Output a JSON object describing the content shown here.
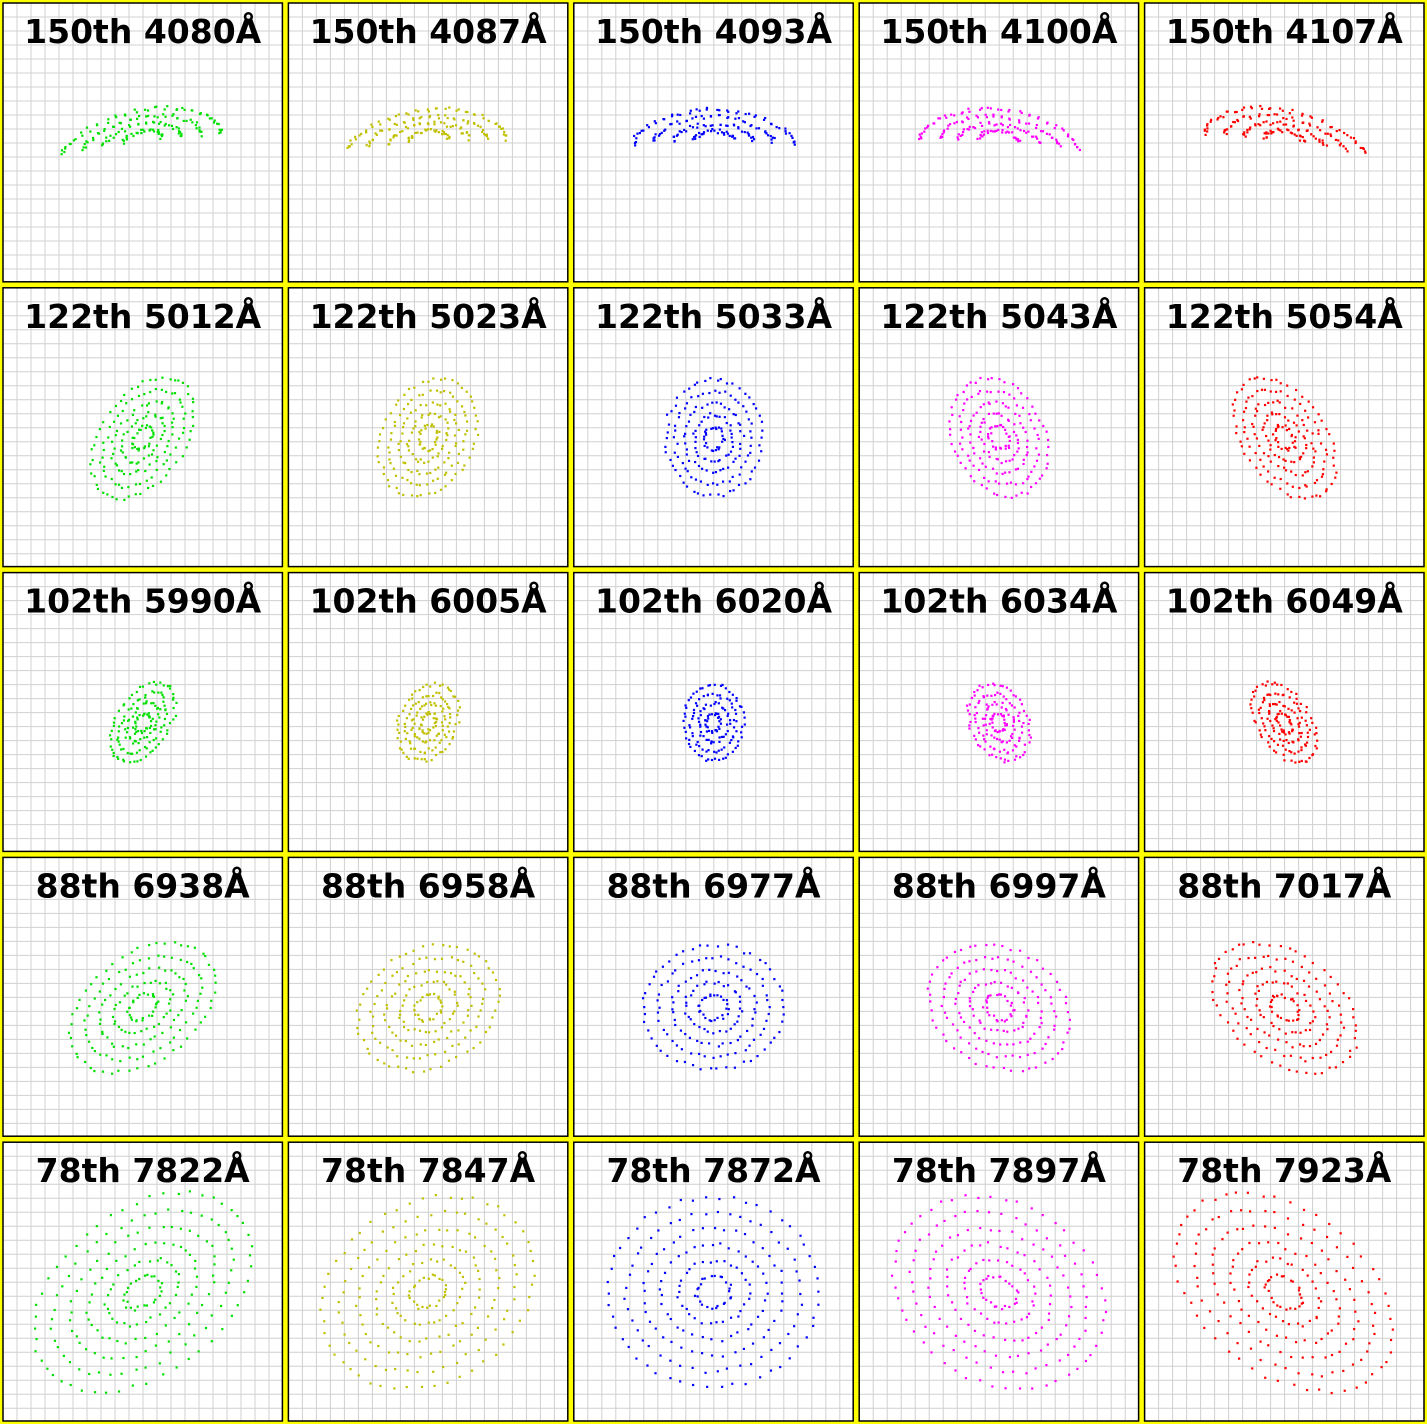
{
  "panels": [
    [
      "150th 4080Å",
      "150th 4087Å",
      "150th 4093Å",
      "150th 4100Å",
      "150th 4107Å"
    ],
    [
      "122th 5012Å",
      "122th 5023Å",
      "122th 5033Å",
      "122th 5043Å",
      "122th 5054Å"
    ],
    [
      "102th 5990Å",
      "102th 6005Å",
      "102th 6020Å",
      "102th 6034Å",
      "102th 6049Å"
    ],
    [
      "88th 6938Å",
      "88th 6958Å",
      "88th 6977Å",
      "88th 6997Å",
      "88th 7017Å"
    ],
    [
      "78th 7822Å",
      "78th 7847Å",
      "78th 7872Å",
      "78th 7897Å",
      "78th 7923Å"
    ]
  ],
  "colors": [
    "#00e000",
    "#c0c000",
    "#0000ff",
    "#ff00ff",
    "#ff0000"
  ]
}
